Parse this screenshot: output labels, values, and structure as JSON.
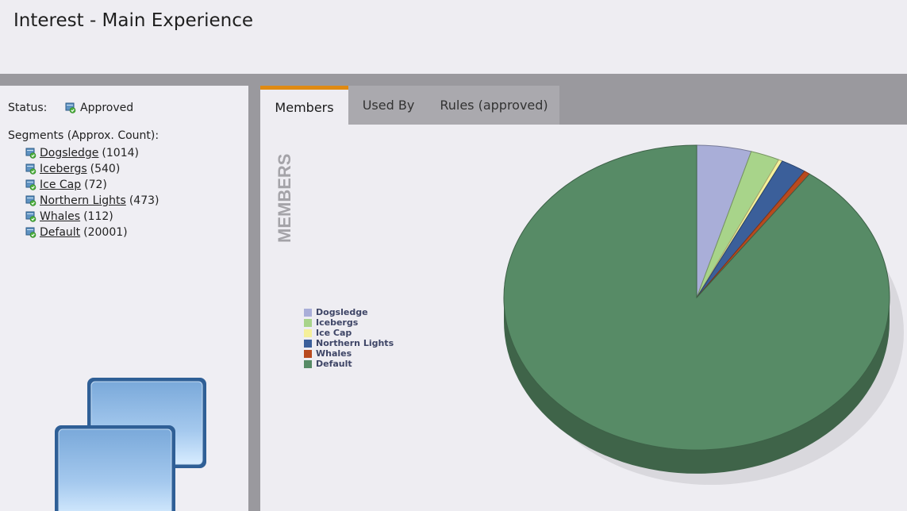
{
  "header": {
    "title": "Interest - Main Experience"
  },
  "status": {
    "label": "Status:",
    "value": "Approved"
  },
  "segments": {
    "heading": "Segments (Approx. Count):",
    "items": [
      {
        "name": "Dogsledge",
        "count": "(1014)"
      },
      {
        "name": "Icebergs",
        "count": "(540)"
      },
      {
        "name": "Ice Cap",
        "count": "(72)"
      },
      {
        "name": "Northern Lights",
        "count": "(473)"
      },
      {
        "name": "Whales",
        "count": "(112)"
      },
      {
        "name": "Default",
        "count": "(20001)"
      }
    ]
  },
  "tabs": [
    {
      "label": "Members"
    },
    {
      "label": "Used By"
    },
    {
      "label": "Rules (approved)"
    }
  ],
  "chart_data": {
    "type": "pie",
    "title": "MEMBERS",
    "categories": [
      "Dogsledge",
      "Icebergs",
      "Ice Cap",
      "Northern Lights",
      "Whales",
      "Default"
    ],
    "values": [
      1014,
      540,
      72,
      473,
      112,
      20001
    ],
    "colors": [
      "#a9aed8",
      "#a8d48a",
      "#f5f09a",
      "#3b5f9a",
      "#b84a1f",
      "#578b66"
    ],
    "legend_position": "left"
  },
  "colors": {
    "active_tab_accent": "#e08a12",
    "band_gray": "#9a999e"
  }
}
